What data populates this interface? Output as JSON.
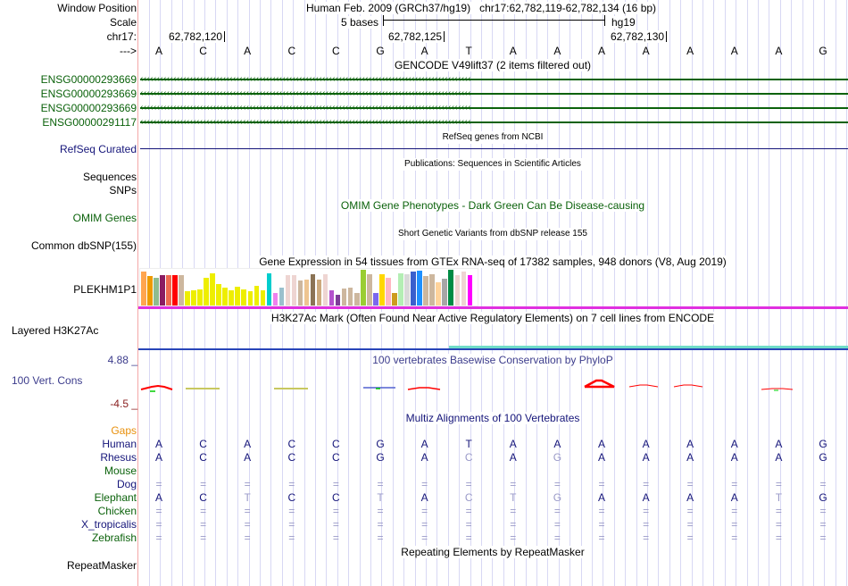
{
  "header": {
    "window_position_label": "Window Position",
    "scale_label": "Scale",
    "chrom_label": "chr17:",
    "strand_label": "--->",
    "assembly_title": "Human Feb. 2009 (GRCh37/hg19)   chr17:62,782,119-62,782,134 (16 bp)",
    "scale_text": "5 bases",
    "assembly_short": "hg19",
    "ticks": [
      "62,782,120",
      "62,782,125",
      "62,782,130"
    ]
  },
  "sequence": [
    "A",
    "C",
    "A",
    "C",
    "C",
    "G",
    "A",
    "T",
    "A",
    "A",
    "A",
    "A",
    "A",
    "A",
    "A",
    "G"
  ],
  "gencode": {
    "title": "GENCODE V49lift37 (2 items filtered out)",
    "genes": [
      "ENSG00000293669",
      "ENSG00000293669",
      "ENSG00000293669",
      "ENSG00000291117"
    ],
    "color": "#0b620b"
  },
  "refseq": {
    "title": "RefSeq genes from NCBI",
    "label": "RefSeq Curated",
    "color": "#15157a"
  },
  "publications": {
    "title": "Publications: Sequences in Scientific Articles",
    "labels": [
      "Sequences",
      "SNPs"
    ]
  },
  "omim": {
    "title": "OMIM Gene Phenotypes - Dark Green Can Be Disease-causing",
    "label": "OMIM Genes",
    "color": "#0b620b"
  },
  "dbsnp": {
    "title": "Short Genetic Variants from dbSNP release 155",
    "label": "Common dbSNP(155)"
  },
  "gtex": {
    "title": "Gene Expression in 54 tissues from GTEx RNA-seq of 17382 samples, 948 donors (V8, Aug 2019)",
    "label": "PLEKHM1P1",
    "bars": [
      {
        "color": "#ffa54f",
        "value": 0.95
      },
      {
        "color": "#ee9a00",
        "value": 0.82
      },
      {
        "color": "#8fbc8f",
        "value": 0.78
      },
      {
        "color": "#8b1c62",
        "value": 0.84
      },
      {
        "color": "#ee6a50",
        "value": 0.84
      },
      {
        "color": "#ff0000",
        "value": 0.84
      },
      {
        "color": "#cdb79e",
        "value": 0.84
      },
      {
        "color": "#eeee00",
        "value": 0.4
      },
      {
        "color": "#eeee00",
        "value": 0.43
      },
      {
        "color": "#eeee00",
        "value": 0.46
      },
      {
        "color": "#eeee00",
        "value": 0.78
      },
      {
        "color": "#eeee00",
        "value": 0.9
      },
      {
        "color": "#eeee00",
        "value": 0.6
      },
      {
        "color": "#eeee00",
        "value": 0.5
      },
      {
        "color": "#eeee00",
        "value": 0.43
      },
      {
        "color": "#eeee00",
        "value": 0.53
      },
      {
        "color": "#eeee00",
        "value": 0.46
      },
      {
        "color": "#eeee00",
        "value": 0.4
      },
      {
        "color": "#eeee00",
        "value": 0.56
      },
      {
        "color": "#eeee00",
        "value": 0.43
      },
      {
        "color": "#00cdcd",
        "value": 0.9
      },
      {
        "color": "#ee82ee",
        "value": 0.36
      },
      {
        "color": "#9ac0cd",
        "value": 0.5
      },
      {
        "color": "#eed5d2",
        "value": 0.86
      },
      {
        "color": "#eed5d2",
        "value": 0.86
      },
      {
        "color": "#cdb79e",
        "value": 0.7
      },
      {
        "color": "#eec591",
        "value": 0.73
      },
      {
        "color": "#8b7355",
        "value": 0.88
      },
      {
        "color": "#cdaa7d",
        "value": 0.73
      },
      {
        "color": "#eed5d2",
        "value": 0.88
      },
      {
        "color": "#b452cd",
        "value": 0.42
      },
      {
        "color": "#7d3c98",
        "value": 0.3
      },
      {
        "color": "#cdb79e",
        "value": 0.48
      },
      {
        "color": "#cdb79e",
        "value": 0.5
      },
      {
        "color": "#cdb79e",
        "value": 0.34
      },
      {
        "color": "#9acd32",
        "value": 1.0
      },
      {
        "color": "#cdb79e",
        "value": 0.88
      },
      {
        "color": "#7b68ee",
        "value": 0.34
      },
      {
        "color": "#ffd700",
        "value": 0.88
      },
      {
        "color": "#ffb6c1",
        "value": 0.78
      },
      {
        "color": "#cd9b1d",
        "value": 0.36
      },
      {
        "color": "#b4eeb4",
        "value": 0.9
      },
      {
        "color": "#d9d9d9",
        "value": 0.88
      },
      {
        "color": "#3a5fcd",
        "value": 0.94
      },
      {
        "color": "#1e90ff",
        "value": 0.98
      },
      {
        "color": "#cdb79e",
        "value": 0.82
      },
      {
        "color": "#cdb79e",
        "value": 0.88
      },
      {
        "color": "#ffd39b",
        "value": 0.64
      },
      {
        "color": "#a6a6a6",
        "value": 0.76
      },
      {
        "color": "#008b45",
        "value": 1.0
      },
      {
        "color": "#eed5d2",
        "value": 0.84
      },
      {
        "color": "#eed5d2",
        "value": 0.94
      },
      {
        "color": "#ff00ff",
        "value": 0.86
      }
    ],
    "baseline_color": "#e030e0"
  },
  "h3k27ac": {
    "title": "H3K27Ac Mark (Often Found Near Active Regulatory Elements) on 7 cell lines from ENCODE",
    "label": "Layered H3K27Ac"
  },
  "phylop": {
    "title": "100 vertebrates Basewise Conservation by PhyloP",
    "label": "100 Vert. Cons",
    "max_label": "4.88 _",
    "min_label": "-4.5 _"
  },
  "multiz": {
    "title": "Multiz Alignments of 100 Vertebrates",
    "gaps_label": "Gaps",
    "species": [
      {
        "name": "Human",
        "color": "#15157a",
        "row": [
          "A",
          "C",
          "A",
          "C",
          "C",
          "G",
          "A",
          "T",
          "A",
          "A",
          "A",
          "A",
          "A",
          "A",
          "A",
          "G"
        ],
        "faded": []
      },
      {
        "name": "Rhesus",
        "color": "#15157a",
        "row": [
          "A",
          "C",
          "A",
          "C",
          "C",
          "G",
          "A",
          "C",
          "A",
          "G",
          "A",
          "A",
          "A",
          "A",
          "A",
          "G"
        ],
        "faded": [
          7,
          9
        ]
      },
      {
        "name": "Mouse",
        "color": "#0b620b",
        "row": [
          "",
          "",
          "",
          "",
          "",
          "",
          "",
          "",
          "",
          "",
          "",
          "",
          "",
          "",
          "",
          ""
        ],
        "faded": []
      },
      {
        "name": "Dog",
        "color": "#15157a",
        "row": [
          "=",
          "=",
          "=",
          "=",
          "=",
          "=",
          "=",
          "=",
          "=",
          "=",
          "=",
          "=",
          "=",
          "=",
          "=",
          "="
        ],
        "faded": "all"
      },
      {
        "name": "Elephant",
        "color": "#0b620b",
        "row": [
          "A",
          "C",
          "T",
          "C",
          "C",
          "T",
          "A",
          "C",
          "T",
          "G",
          "A",
          "A",
          "A",
          "A",
          "T",
          "G"
        ],
        "faded": [
          2,
          5,
          7,
          8,
          9,
          14
        ]
      },
      {
        "name": "Chicken",
        "color": "#0b620b",
        "row": [
          "=",
          "=",
          "=",
          "=",
          "=",
          "=",
          "=",
          "=",
          "=",
          "=",
          "=",
          "=",
          "=",
          "=",
          "=",
          "="
        ],
        "faded": "all"
      },
      {
        "name": "X_tropicalis",
        "color": "#15157a",
        "row": [
          "=",
          "=",
          "=",
          "=",
          "=",
          "=",
          "=",
          "=",
          "=",
          "=",
          "=",
          "=",
          "=",
          "=",
          "=",
          "="
        ],
        "faded": "all"
      },
      {
        "name": "Zebrafish",
        "color": "#0b620b",
        "row": [
          "=",
          "=",
          "=",
          "=",
          "=",
          "=",
          "=",
          "=",
          "=",
          "=",
          "=",
          "=",
          "=",
          "=",
          "=",
          "="
        ],
        "faded": "all"
      }
    ]
  },
  "repeatmasker": {
    "title": "Repeating Elements by RepeatMasker",
    "label": "RepeatMasker"
  }
}
